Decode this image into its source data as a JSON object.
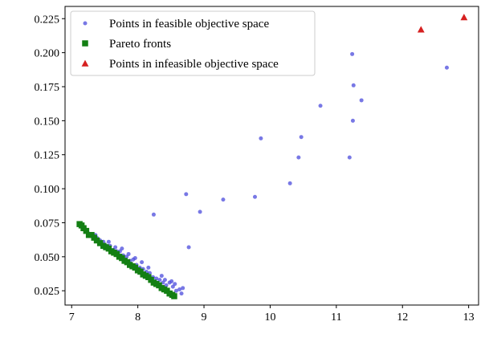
{
  "chart_data": {
    "type": "scatter",
    "title": "",
    "xlabel": "",
    "ylabel": "",
    "xlim": [
      6.9,
      13.15
    ],
    "ylim": [
      0.0145,
      0.234
    ],
    "grid": false,
    "legend_position": "top-left",
    "x_ticks": [
      7,
      8,
      9,
      10,
      11,
      12,
      13
    ],
    "x_tick_labels": [
      "7",
      "8",
      "9",
      "10",
      "11",
      "12",
      "13"
    ],
    "y_ticks": [
      0.025,
      0.05,
      0.075,
      0.1,
      0.125,
      0.15,
      0.175,
      0.2,
      0.225
    ],
    "y_tick_labels": [
      "0.025",
      "0.050",
      "0.075",
      "0.100",
      "0.125",
      "0.150",
      "0.175",
      "0.200",
      "0.225"
    ],
    "series": [
      {
        "name": "Points in feasible objective space",
        "marker": "circle",
        "color": "#4b4bdc",
        "points": [
          [
            8.24,
            0.081
          ],
          [
            8.73,
            0.096
          ],
          [
            8.77,
            0.057
          ],
          [
            8.94,
            0.083
          ],
          [
            9.29,
            0.092
          ],
          [
            9.77,
            0.094
          ],
          [
            9.86,
            0.137
          ],
          [
            10.3,
            0.104
          ],
          [
            10.43,
            0.123
          ],
          [
            10.47,
            0.138
          ],
          [
            10.76,
            0.161
          ],
          [
            11.2,
            0.123
          ],
          [
            11.24,
            0.199
          ],
          [
            11.25,
            0.15
          ],
          [
            11.26,
            0.176
          ],
          [
            11.38,
            0.165
          ],
          [
            12.67,
            0.189
          ],
          [
            7.2,
            0.07
          ],
          [
            7.26,
            0.067
          ],
          [
            7.33,
            0.065
          ],
          [
            7.38,
            0.064
          ],
          [
            7.43,
            0.062
          ],
          [
            7.48,
            0.061
          ],
          [
            7.53,
            0.058
          ],
          [
            7.58,
            0.058
          ],
          [
            7.63,
            0.055
          ],
          [
            7.68,
            0.054
          ],
          [
            7.73,
            0.054
          ],
          [
            7.78,
            0.051
          ],
          [
            7.83,
            0.05
          ],
          [
            7.88,
            0.047
          ],
          [
            7.93,
            0.048
          ],
          [
            7.98,
            0.044
          ],
          [
            8.03,
            0.042
          ],
          [
            8.08,
            0.041
          ],
          [
            8.13,
            0.039
          ],
          [
            8.18,
            0.038
          ],
          [
            8.23,
            0.035
          ],
          [
            8.28,
            0.034
          ],
          [
            8.33,
            0.033
          ],
          [
            8.38,
            0.031
          ],
          [
            8.43,
            0.029
          ],
          [
            8.48,
            0.031
          ],
          [
            8.53,
            0.028
          ],
          [
            8.58,
            0.025
          ],
          [
            8.63,
            0.026
          ],
          [
            8.68,
            0.027
          ],
          [
            7.36,
            0.066
          ],
          [
            7.56,
            0.061
          ],
          [
            7.76,
            0.056
          ],
          [
            7.96,
            0.049
          ],
          [
            8.16,
            0.042
          ],
          [
            8.36,
            0.036
          ],
          [
            8.56,
            0.03
          ],
          [
            8.66,
            0.023
          ],
          [
            8.41,
            0.033
          ],
          [
            8.51,
            0.032
          ],
          [
            8.06,
            0.046
          ],
          [
            7.86,
            0.052
          ],
          [
            7.66,
            0.057
          ]
        ]
      },
      {
        "name": "Pareto fronts",
        "marker": "square",
        "color": "#137f13",
        "points": [
          [
            7.12,
            0.074
          ],
          [
            7.15,
            0.073
          ],
          [
            7.18,
            0.071
          ],
          [
            7.22,
            0.069
          ],
          [
            7.26,
            0.066
          ],
          [
            7.3,
            0.066
          ],
          [
            7.34,
            0.064
          ],
          [
            7.38,
            0.062
          ],
          [
            7.43,
            0.06
          ],
          [
            7.48,
            0.058
          ],
          [
            7.52,
            0.057
          ],
          [
            7.56,
            0.056
          ],
          [
            7.6,
            0.054
          ],
          [
            7.64,
            0.053
          ],
          [
            7.68,
            0.052
          ],
          [
            7.72,
            0.05
          ],
          [
            7.76,
            0.049
          ],
          [
            7.8,
            0.047
          ],
          [
            7.84,
            0.046
          ],
          [
            7.88,
            0.044
          ],
          [
            7.92,
            0.043
          ],
          [
            7.96,
            0.042
          ],
          [
            8.0,
            0.04
          ],
          [
            8.04,
            0.039
          ],
          [
            8.08,
            0.037
          ],
          [
            8.12,
            0.036
          ],
          [
            8.16,
            0.035
          ],
          [
            8.2,
            0.033
          ],
          [
            8.24,
            0.031
          ],
          [
            8.28,
            0.03
          ],
          [
            8.32,
            0.029
          ],
          [
            8.36,
            0.027
          ],
          [
            8.4,
            0.026
          ],
          [
            8.44,
            0.025
          ],
          [
            8.48,
            0.023
          ],
          [
            8.52,
            0.022
          ],
          [
            8.55,
            0.021
          ]
        ]
      },
      {
        "name": "Points in infeasible objective space",
        "marker": "triangle",
        "color": "#d62020",
        "points": [
          [
            12.28,
            0.217
          ],
          [
            12.93,
            0.226
          ]
        ]
      }
    ]
  }
}
